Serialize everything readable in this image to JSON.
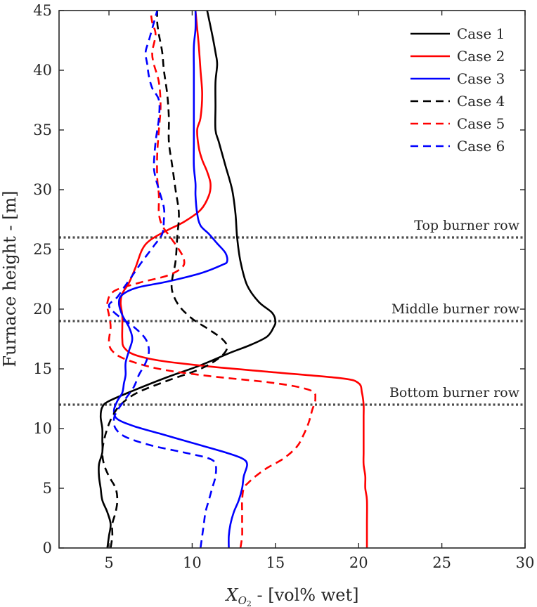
{
  "chart_data": {
    "type": "line",
    "xlabel_parts": {
      "main": "X",
      "sub": "O",
      "subsub": "2",
      "rest": " - [vol% wet]"
    },
    "ylabel": "Furnace height - [m]",
    "xlim": [
      2,
      30
    ],
    "ylim": [
      0,
      45
    ],
    "xticks": [
      5,
      10,
      15,
      20,
      25,
      30
    ],
    "yticks": [
      0,
      5,
      10,
      15,
      20,
      25,
      30,
      35,
      40,
      45
    ],
    "grid": false,
    "legend_position": "top-right",
    "reference_lines": [
      {
        "label": "Top burner row",
        "y": 26
      },
      {
        "label": "Middle burner row",
        "y": 19
      },
      {
        "label": "Bottom burner row",
        "y": 12
      }
    ],
    "series": [
      {
        "name": "Case 1",
        "color": "#000000",
        "dash": "solid",
        "points": [
          [
            4.9,
            0
          ],
          [
            5.0,
            1
          ],
          [
            5.1,
            2
          ],
          [
            4.9,
            3
          ],
          [
            4.6,
            4
          ],
          [
            4.5,
            5
          ],
          [
            4.4,
            6
          ],
          [
            4.4,
            7
          ],
          [
            4.6,
            8
          ],
          [
            4.6,
            9
          ],
          [
            4.6,
            10
          ],
          [
            4.5,
            11
          ],
          [
            4.6,
            11.8
          ],
          [
            5.0,
            12.3
          ],
          [
            6.5,
            13.2
          ],
          [
            8.5,
            14.3
          ],
          [
            10.5,
            15.3
          ],
          [
            12.2,
            16.3
          ],
          [
            13.5,
            17.0
          ],
          [
            14.5,
            17.7
          ],
          [
            14.9,
            18.5
          ],
          [
            15.0,
            19.0
          ],
          [
            14.8,
            19.7
          ],
          [
            14.0,
            20.6
          ],
          [
            13.3,
            22.0
          ],
          [
            12.9,
            24.0
          ],
          [
            12.7,
            26.0
          ],
          [
            12.6,
            28.0
          ],
          [
            12.4,
            30.0
          ],
          [
            12.0,
            32.0
          ],
          [
            11.6,
            34.0
          ],
          [
            11.4,
            35.0
          ],
          [
            11.4,
            37.0
          ],
          [
            11.4,
            39.0
          ],
          [
            11.5,
            40.5
          ],
          [
            11.4,
            41.5
          ],
          [
            11.2,
            43.0
          ],
          [
            10.9,
            45.0
          ]
        ]
      },
      {
        "name": "Case 2",
        "color": "#ff0000",
        "dash": "solid",
        "points": [
          [
            20.5,
            0
          ],
          [
            20.5,
            2
          ],
          [
            20.5,
            4
          ],
          [
            20.4,
            5
          ],
          [
            20.4,
            6
          ],
          [
            20.3,
            7
          ],
          [
            20.3,
            8
          ],
          [
            20.3,
            9
          ],
          [
            20.3,
            10
          ],
          [
            20.3,
            11
          ],
          [
            20.3,
            12
          ],
          [
            20.2,
            13
          ],
          [
            20.0,
            13.8
          ],
          [
            19.0,
            14.2
          ],
          [
            15.0,
            14.7
          ],
          [
            11.0,
            15.2
          ],
          [
            8.0,
            15.7
          ],
          [
            6.5,
            16.2
          ],
          [
            5.9,
            16.8
          ],
          [
            5.8,
            17.5
          ],
          [
            5.8,
            18.5
          ],
          [
            5.8,
            19.5
          ],
          [
            5.7,
            20.5
          ],
          [
            5.8,
            21.3
          ],
          [
            6.2,
            22.2
          ],
          [
            6.6,
            23.5
          ],
          [
            7.0,
            25.0
          ],
          [
            7.5,
            25.8
          ],
          [
            8.5,
            26.6
          ],
          [
            9.5,
            27.3
          ],
          [
            10.5,
            28.3
          ],
          [
            11.0,
            29.5
          ],
          [
            11.1,
            30.5
          ],
          [
            10.9,
            31.5
          ],
          [
            10.6,
            32.5
          ],
          [
            10.4,
            33.5
          ],
          [
            10.3,
            35.0
          ],
          [
            10.5,
            36.0
          ],
          [
            10.6,
            38.0
          ],
          [
            10.5,
            40.0
          ],
          [
            10.4,
            42.0
          ],
          [
            10.3,
            43.5
          ],
          [
            10.2,
            45.0
          ]
        ]
      },
      {
        "name": "Case 3",
        "color": "#0000ff",
        "dash": "solid",
        "points": [
          [
            12.2,
            0
          ],
          [
            12.2,
            1
          ],
          [
            12.3,
            2
          ],
          [
            12.5,
            3
          ],
          [
            12.8,
            4
          ],
          [
            13.0,
            5
          ],
          [
            13.1,
            6
          ],
          [
            13.3,
            7
          ],
          [
            13.0,
            7.5
          ],
          [
            12.0,
            8.0
          ],
          [
            10.0,
            8.8
          ],
          [
            8.0,
            9.6
          ],
          [
            6.5,
            10.2
          ],
          [
            5.5,
            10.8
          ],
          [
            5.3,
            11.5
          ],
          [
            5.5,
            12.3
          ],
          [
            5.8,
            13.0
          ],
          [
            5.9,
            13.8
          ],
          [
            6.0,
            14.5
          ],
          [
            6.0,
            15.5
          ],
          [
            6.2,
            16.5
          ],
          [
            6.4,
            17.5
          ],
          [
            6.2,
            18.5
          ],
          [
            5.8,
            19.5
          ],
          [
            5.6,
            20.5
          ],
          [
            5.8,
            21.2
          ],
          [
            6.7,
            21.8
          ],
          [
            8.5,
            22.3
          ],
          [
            10.5,
            23.0
          ],
          [
            11.8,
            23.7
          ],
          [
            12.1,
            24.0
          ],
          [
            12.0,
            24.7
          ],
          [
            11.5,
            25.5
          ],
          [
            11.0,
            26.3
          ],
          [
            10.5,
            27.0
          ],
          [
            10.3,
            28.0
          ],
          [
            10.2,
            29.5
          ],
          [
            10.2,
            30.5
          ],
          [
            10.1,
            32.0
          ],
          [
            10.1,
            34.0
          ],
          [
            10.1,
            36.0
          ],
          [
            10.1,
            38.0
          ],
          [
            10.1,
            40.0
          ],
          [
            10.1,
            42.0
          ],
          [
            10.2,
            43.5
          ],
          [
            10.2,
            45.0
          ]
        ]
      },
      {
        "name": "Case 4",
        "color": "#000000",
        "dash": "dashed",
        "points": [
          [
            5.1,
            0
          ],
          [
            5.2,
            1
          ],
          [
            5.2,
            2
          ],
          [
            5.4,
            3
          ],
          [
            5.5,
            4
          ],
          [
            5.4,
            5
          ],
          [
            5.0,
            6
          ],
          [
            4.7,
            7
          ],
          [
            4.6,
            8
          ],
          [
            4.7,
            9
          ],
          [
            4.9,
            10
          ],
          [
            5.2,
            11
          ],
          [
            5.7,
            12
          ],
          [
            6.7,
            13.0
          ],
          [
            8.5,
            14.0
          ],
          [
            10.5,
            15.0
          ],
          [
            11.7,
            16.0
          ],
          [
            12.1,
            16.8
          ],
          [
            11.8,
            17.5
          ],
          [
            11.0,
            18.3
          ],
          [
            10.0,
            19.2
          ],
          [
            9.2,
            20.3
          ],
          [
            8.8,
            21.5
          ],
          [
            8.8,
            22.5
          ],
          [
            9.0,
            24.0
          ],
          [
            9.1,
            26.0
          ],
          [
            9.2,
            28.0
          ],
          [
            9.0,
            30.0
          ],
          [
            8.8,
            32.0
          ],
          [
            8.6,
            34.0
          ],
          [
            8.6,
            36.0
          ],
          [
            8.5,
            38.0
          ],
          [
            8.3,
            40.0
          ],
          [
            8.2,
            41.5
          ],
          [
            8.0,
            43.0
          ],
          [
            7.9,
            44.0
          ],
          [
            7.9,
            45.0
          ]
        ]
      },
      {
        "name": "Case 5",
        "color": "#ff0000",
        "dash": "dashed",
        "points": [
          [
            12.9,
            0
          ],
          [
            13.0,
            1
          ],
          [
            13.0,
            2
          ],
          [
            13.0,
            3
          ],
          [
            13.0,
            4
          ],
          [
            13.1,
            5
          ],
          [
            13.4,
            5.5
          ],
          [
            13.8,
            6.0
          ],
          [
            14.5,
            6.7
          ],
          [
            15.5,
            7.5
          ],
          [
            16.3,
            8.5
          ],
          [
            16.7,
            9.5
          ],
          [
            17.0,
            10.5
          ],
          [
            17.2,
            11.5
          ],
          [
            17.4,
            12.5
          ],
          [
            17.1,
            13.2
          ],
          [
            15.0,
            13.8
          ],
          [
            11.0,
            14.4
          ],
          [
            8.0,
            15.0
          ],
          [
            6.0,
            15.8
          ],
          [
            5.2,
            16.5
          ],
          [
            5.0,
            17.3
          ],
          [
            5.1,
            18.5
          ],
          [
            5.0,
            19.5
          ],
          [
            4.9,
            20.5
          ],
          [
            5.3,
            21.5
          ],
          [
            6.8,
            22.2
          ],
          [
            8.5,
            22.8
          ],
          [
            9.4,
            23.5
          ],
          [
            9.5,
            24.2
          ],
          [
            9.2,
            25.0
          ],
          [
            8.7,
            26.0
          ],
          [
            8.2,
            27.0
          ],
          [
            8.0,
            28.0
          ],
          [
            8.0,
            29.5
          ],
          [
            7.9,
            31.0
          ],
          [
            7.9,
            33.0
          ],
          [
            8.0,
            35.0
          ],
          [
            8.1,
            37.0
          ],
          [
            8.0,
            39.0
          ],
          [
            7.7,
            40.5
          ],
          [
            7.6,
            41.5
          ],
          [
            7.8,
            43.0
          ],
          [
            7.6,
            44.0
          ],
          [
            7.5,
            45.0
          ]
        ]
      },
      {
        "name": "Case 6",
        "color": "#0000ff",
        "dash": "dashed",
        "points": [
          [
            10.5,
            0
          ],
          [
            10.6,
            1
          ],
          [
            10.7,
            2
          ],
          [
            10.8,
            3
          ],
          [
            11.0,
            4
          ],
          [
            11.2,
            5
          ],
          [
            11.4,
            6
          ],
          [
            11.4,
            7
          ],
          [
            11.0,
            7.5
          ],
          [
            9.5,
            8.0
          ],
          [
            7.5,
            8.6
          ],
          [
            6.0,
            9.3
          ],
          [
            5.4,
            10.0
          ],
          [
            5.3,
            10.8
          ],
          [
            5.5,
            11.5
          ],
          [
            6.0,
            12.5
          ],
          [
            6.5,
            13.5
          ],
          [
            6.8,
            14.5
          ],
          [
            7.2,
            15.5
          ],
          [
            7.4,
            16.5
          ],
          [
            7.2,
            17.5
          ],
          [
            6.5,
            18.5
          ],
          [
            5.5,
            19.5
          ],
          [
            5.0,
            20.3
          ],
          [
            5.5,
            21.0
          ],
          [
            6.0,
            22.0
          ],
          [
            6.5,
            23.0
          ],
          [
            7.0,
            24.0
          ],
          [
            7.7,
            25.3
          ],
          [
            8.2,
            26.3
          ],
          [
            8.3,
            27.5
          ],
          [
            8.3,
            28.5
          ],
          [
            8.0,
            30.0
          ],
          [
            7.8,
            31.0
          ],
          [
            7.7,
            32.0
          ],
          [
            7.8,
            34.0
          ],
          [
            8.0,
            36.0
          ],
          [
            8.0,
            37.5
          ],
          [
            7.6,
            38.5
          ],
          [
            7.4,
            39.5
          ],
          [
            7.3,
            40.5
          ],
          [
            7.2,
            41.5
          ],
          [
            7.4,
            42.5
          ],
          [
            7.7,
            44.0
          ],
          [
            7.9,
            45.0
          ]
        ]
      }
    ]
  }
}
